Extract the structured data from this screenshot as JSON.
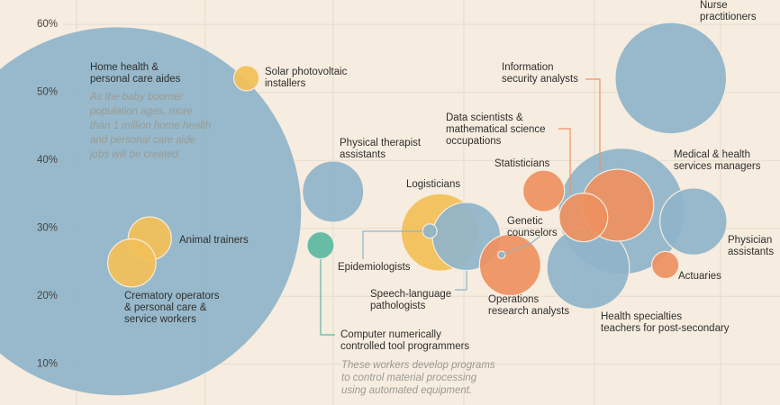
{
  "chart_data": {
    "type": "bubble",
    "ylim": [
      4,
      63.6
    ],
    "yticks": [
      {
        "value": 10,
        "label": "10%"
      },
      {
        "value": 20,
        "label": "20%"
      },
      {
        "value": 30,
        "label": "30%"
      },
      {
        "value": 40,
        "label": "40%"
      },
      {
        "value": 50,
        "label": "50%"
      },
      {
        "value": 60,
        "label": "60%"
      }
    ],
    "xlim": [
      0,
      100
    ],
    "grid": true,
    "labels": [
      [
        "Home health &",
        "personal care aides"
      ],
      [
        "Nurse",
        "practitioners"
      ],
      [
        "Medical & health",
        "services managers"
      ],
      [
        "Health specialties",
        "teachers for post-secondary"
      ],
      [
        "Physician",
        "assistants"
      ],
      [
        "Physical therapist",
        "assistants"
      ],
      [
        "Solar photovoltaic",
        "installers"
      ],
      [
        "Animal trainers"
      ],
      [
        "Crematory operators",
        "& personal care &",
        "service workers"
      ],
      [
        "Computer numerically",
        "controlled tool programmers"
      ],
      [
        "Logisticians"
      ],
      [
        "Speech-language",
        "pathologists"
      ],
      [
        "Epidemiologists"
      ],
      [
        "Operations",
        "research analysts"
      ],
      [
        "Genetic",
        "counselors"
      ],
      [
        "Statisticians"
      ],
      [
        "Information",
        "security analysts"
      ],
      [
        "Data scientists &",
        "mathematical science",
        "occupations"
      ],
      [
        "Actuaries"
      ]
    ],
    "x": [
      15.0,
      86.0,
      79.7,
      75.4,
      88.9,
      42.7,
      31.6,
      19.2,
      16.9,
      41.1,
      56.4,
      59.8,
      55.1,
      65.4,
      64.3,
      69.7,
      79.2,
      74.8,
      85.3
    ],
    "values": [
      32.5,
      52.1,
      32.5,
      24.2,
      31.0,
      35.4,
      52.1,
      28.5,
      24.9,
      27.5,
      29.4,
      28.8,
      29.6,
      24.6,
      26.1,
      35.5,
      33.4,
      31.6,
      24.6
    ],
    "sizes": [
      1000,
      91,
      117,
      50,
      33,
      27.5,
      4.7,
      13.7,
      17,
      5.4,
      44,
      34,
      1.5,
      27.5,
      0.4,
      12.6,
      38,
      17.3,
      5.4
    ],
    "colors": [
      "#8fb5c9",
      "#8fb5c9",
      "#8fb5c9",
      "#8fb5c9",
      "#8fb5c9",
      "#8fb5c9",
      "#f2bf57",
      "#f2bf57",
      "#f2bf57",
      "#5db8a1",
      "#f2bf57",
      "#8fb5c9",
      "#8fb5c9",
      "#ee9160",
      "#8fb5c9",
      "#ee9160",
      "#ee9160",
      "#ee9160",
      "#ee9160"
    ],
    "annotations": [
      [
        "As the baby boomer",
        "population ages, more",
        "than 1 million home health",
        "and personal care aide",
        "jobs will be created."
      ],
      [
        "These workers develop programs",
        "to control material processing",
        "using automated equipment."
      ]
    ]
  }
}
